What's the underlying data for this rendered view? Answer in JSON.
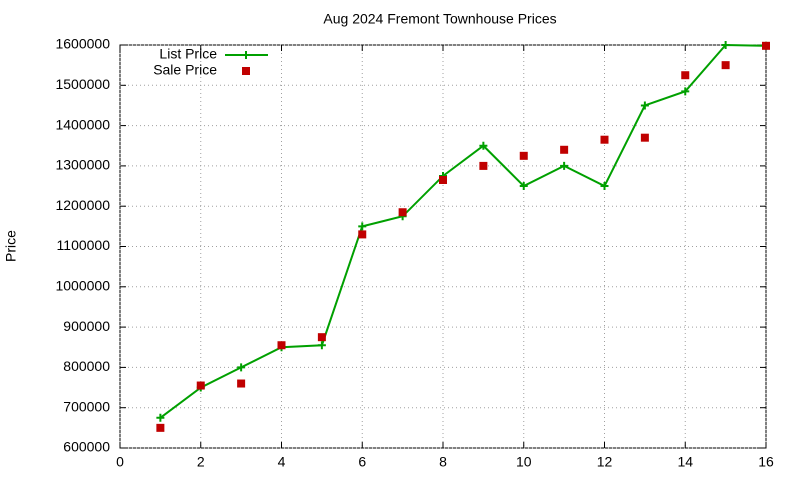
{
  "chart_data": {
    "type": "line",
    "title": "Aug 2024 Fremont Townhouse Prices",
    "y_label": "Price",
    "x": [
      1,
      2,
      3,
      4,
      5,
      6,
      7,
      8,
      9,
      10,
      11,
      12,
      13,
      14,
      15,
      16
    ],
    "series": [
      {
        "name": "List Price",
        "color": "#00a000",
        "style": "linespoints",
        "values": [
          675000,
          750000,
          800000,
          850000,
          855000,
          1150000,
          1175000,
          1275000,
          1350000,
          1250000,
          1300000,
          1250000,
          1450000,
          1485000,
          1600000,
          1598000
        ]
      },
      {
        "name": "Sale Price",
        "color": "#c00000",
        "style": "points",
        "values": [
          650000,
          755000,
          760000,
          855000,
          875000,
          1130000,
          1185000,
          1265000,
          1300000,
          1325000,
          1340000,
          1365000,
          1370000,
          1525000,
          1550000,
          1598000
        ]
      }
    ],
    "xlim": [
      0,
      16
    ],
    "xticks": [
      0,
      2,
      4,
      6,
      8,
      10,
      12,
      14,
      16
    ],
    "ylim": [
      600000,
      1600000
    ],
    "yticks": [
      600000,
      700000,
      800000,
      900000,
      1000000,
      1100000,
      1200000,
      1300000,
      1400000,
      1500000,
      1600000
    ],
    "grid": true,
    "legend": "top-left"
  }
}
